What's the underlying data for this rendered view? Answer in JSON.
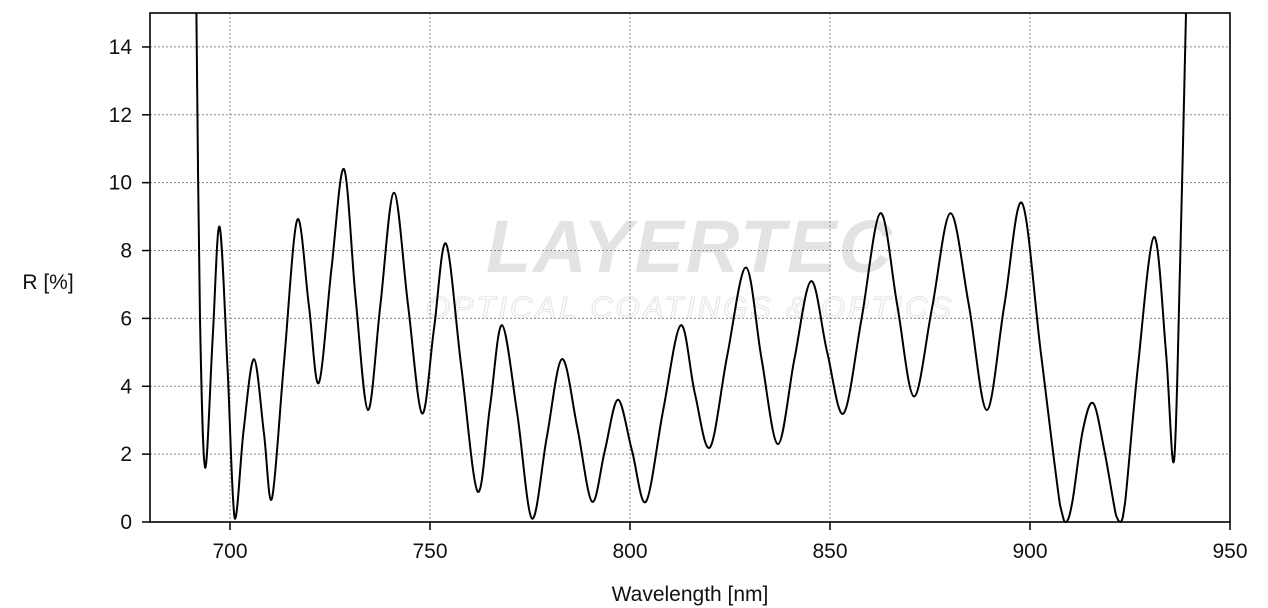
{
  "watermark": {
    "brand": "LAYERTEC",
    "tagline": "OPTICAL COATINGS & OPTICS"
  },
  "chart_data": {
    "type": "line",
    "title": "",
    "xlabel": "Wavelength [nm]",
    "ylabel": "R [%]",
    "xlim": [
      680,
      950
    ],
    "ylim": [
      0,
      15
    ],
    "xticks": [
      700,
      750,
      800,
      850,
      900,
      950
    ],
    "yticks": [
      0,
      2,
      4,
      6,
      8,
      10,
      12,
      14
    ],
    "grid": true,
    "line_color": "#000000",
    "series": [
      {
        "x": [
          691.6,
          692.5,
          693.8,
          695.7,
          697.4,
          699.4,
          701.2,
          703.4,
          706.0,
          708.5,
          710.5,
          713.5,
          716.8,
          719.7,
          722.2,
          725.4,
          728.5,
          731.4,
          734.5,
          737.6,
          741.0,
          744.5,
          748.0,
          751.0,
          754.0,
          757.8,
          761.9,
          765.0,
          768.0,
          771.8,
          775.5,
          779.2,
          783.0,
          786.8,
          790.5,
          793.7,
          797.0,
          800.5,
          804.0,
          808.3,
          812.7,
          816.2,
          820.0,
          824.3,
          829.0,
          832.9,
          837.0,
          841.1,
          845.3,
          849.3,
          853.4,
          857.9,
          862.6,
          866.8,
          871.0,
          875.5,
          880.1,
          884.7,
          889.2,
          893.6,
          898.0,
          902.7,
          907.5,
          909.0,
          910.6,
          913.2,
          915.8,
          918.6,
          921.5,
          922.7,
          923.8,
          927.0,
          931.0,
          934.0,
          936.0,
          937.5,
          939.0
        ],
        "y": [
          15.0,
          6.0,
          1.6,
          5.5,
          8.7,
          4.5,
          0.1,
          2.7,
          4.8,
          2.6,
          0.7,
          4.7,
          8.9,
          6.4,
          4.1,
          7.5,
          10.4,
          6.6,
          3.3,
          6.4,
          9.7,
          6.4,
          3.2,
          5.7,
          8.2,
          4.6,
          0.9,
          3.4,
          5.8,
          3.2,
          0.1,
          2.5,
          4.8,
          2.8,
          0.6,
          2.1,
          3.6,
          2.1,
          0.6,
          3.3,
          5.8,
          3.8,
          2.2,
          4.9,
          7.5,
          4.8,
          2.3,
          4.8,
          7.1,
          5.0,
          3.2,
          6.0,
          9.1,
          6.4,
          3.7,
          6.3,
          9.1,
          6.4,
          3.3,
          6.4,
          9.4,
          5.0,
          0.5,
          0.0,
          0.6,
          2.7,
          3.5,
          2.1,
          0.2,
          0.0,
          0.6,
          4.6,
          8.4,
          5.0,
          1.8,
          7.5,
          15.0
        ]
      }
    ]
  }
}
